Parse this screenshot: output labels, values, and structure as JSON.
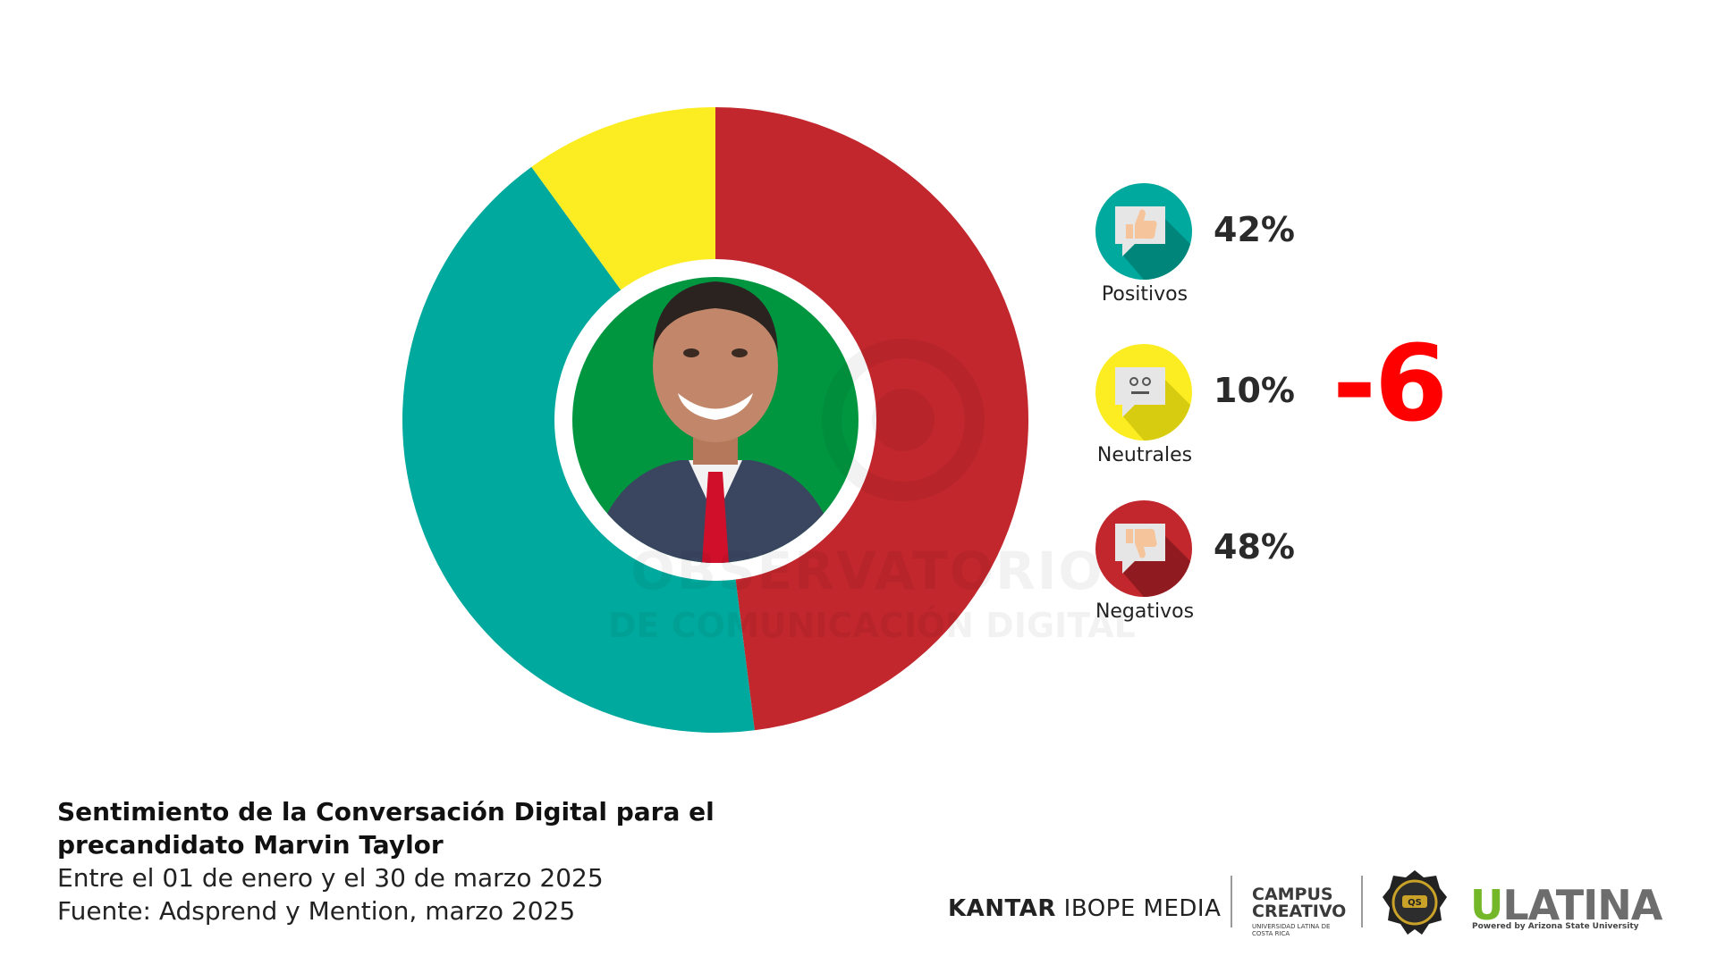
{
  "chart_data": {
    "type": "pie",
    "donut": true,
    "title": "Sentimiento de la Conversación Digital para el precandidato Marvin Taylor",
    "start": "12 o'clock",
    "direction": "clockwise",
    "slices": [
      {
        "label": "Negativos",
        "value": 48,
        "color": "#c1272d"
      },
      {
        "label": "Positivos",
        "value": 42,
        "color": "#00a99d"
      },
      {
        "label": "Neutrales",
        "value": 10,
        "color": "#fbed21"
      }
    ],
    "center_image": "photo of candidate on green circle"
  },
  "legend": [
    {
      "label": "Positivos",
      "percent": "42%",
      "icon": "thumbs-up-icon",
      "color": "#00a99d",
      "dark": "#00857b"
    },
    {
      "label": "Neutrales",
      "percent": "10%",
      "icon": "neutral-face-icon",
      "color": "#fbed21",
      "dark": "#d8cc10"
    },
    {
      "label": "Negativos",
      "percent": "48%",
      "icon": "thumbs-down-icon",
      "color": "#c1272d",
      "dark": "#8f1b20"
    }
  ],
  "net_sentiment": "-6",
  "watermark": {
    "line1": "OBSERVATORIO",
    "line2": "DE COMUNICACIÓN DIGITAL"
  },
  "footer": {
    "title_line1": "Sentimiento de la Conversación Digital para el",
    "title_line2": "precandidato Marvin Taylor",
    "period": "Entre el 01 de enero y el 30 de marzo 2025",
    "source": "Fuente: Adsprend y Mention, marzo 2025"
  },
  "logos": {
    "kantar_bold": "KANTAR",
    "kantar_rest": "IBOPE MEDIA",
    "campus_line1": "CAMPUS",
    "campus_line2": "CREATIVO",
    "campus_small": "UNIVERSIDAD LATINA DE COSTA RICA",
    "qs_badge": "QS",
    "ulatina_u": "U",
    "ulatina_rest": "LATINA",
    "ulatina_sub": "Powered by Arizona State University"
  },
  "colors": {
    "photo_bg": "#009640",
    "net_value": "#ff0000"
  }
}
